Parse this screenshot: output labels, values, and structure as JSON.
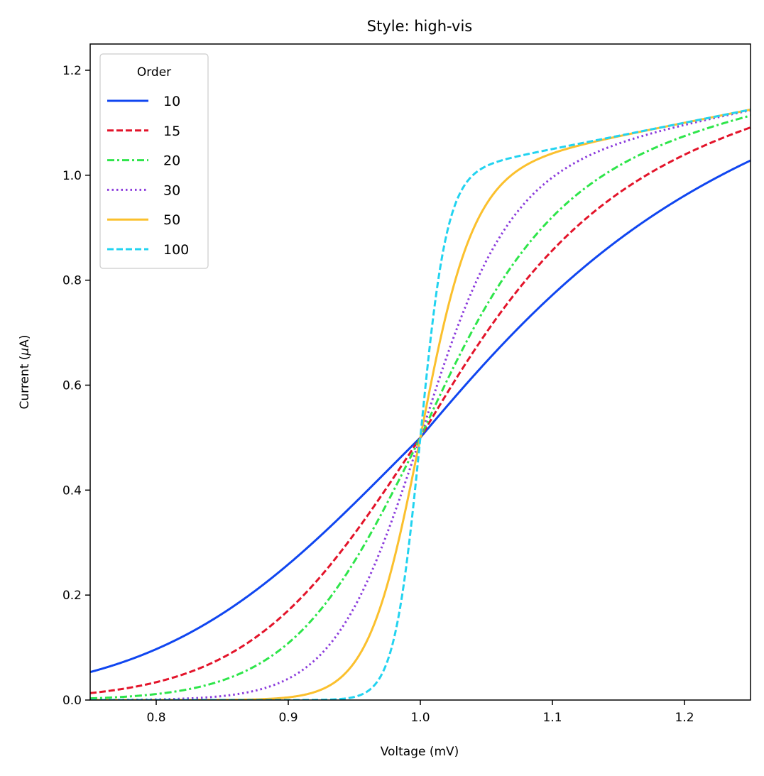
{
  "chart_data": {
    "type": "line",
    "title": "Style: high-vis",
    "xlabel": "Voltage (mV)",
    "ylabel": "Current (μA)",
    "ylabel_prefix": "Current (",
    "ylabel_mu": "μ",
    "ylabel_suffix": "A)",
    "xlim": [
      0.75,
      1.25
    ],
    "ylim": [
      0.0,
      1.25
    ],
    "xticks": [
      "0.8",
      "0.9",
      "1.0",
      "1.1",
      "1.2"
    ],
    "xtick_values": [
      0.8,
      0.9,
      1.0,
      1.1,
      1.2
    ],
    "yticks": [
      "0.0",
      "0.2",
      "0.4",
      "0.6",
      "0.8",
      "1.0",
      "1.2"
    ],
    "ytick_values": [
      0.0,
      0.2,
      0.4,
      0.6,
      0.8,
      1.0,
      1.2
    ],
    "grid": false,
    "legend": {
      "title": "Order",
      "position": "top-left"
    },
    "series": [
      {
        "name": "10",
        "order": 10,
        "color": "#1046f0",
        "dash": "solid"
      },
      {
        "name": "15",
        "order": 15,
        "color": "#e3142a",
        "dash": "dashed"
      },
      {
        "name": "20",
        "order": 20,
        "color": "#2ee54a",
        "dash": "dashdot"
      },
      {
        "name": "30",
        "order": 30,
        "color": "#8b3bdc",
        "dash": "dotted"
      },
      {
        "name": "50",
        "order": 50,
        "color": "#fbc02d",
        "dash": "solid"
      },
      {
        "name": "100",
        "order": 100,
        "color": "#22d3f0",
        "dash": "dashed"
      }
    ],
    "curve": "I(V) = V^n / (1 + V^n) + 0.5*(V - 1) for V > 1, with n = order"
  }
}
